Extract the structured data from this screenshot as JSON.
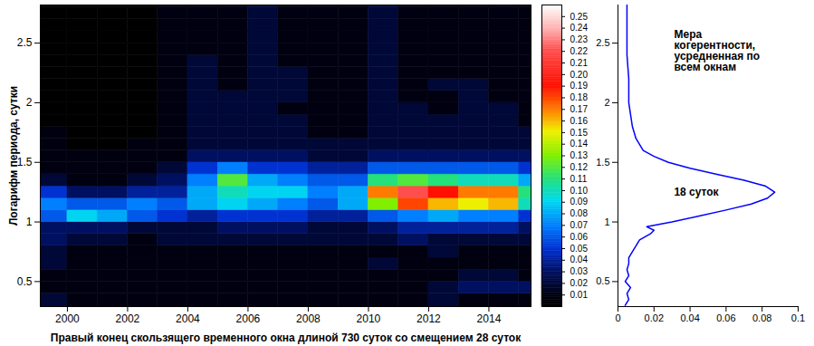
{
  "chart_data": [
    {
      "type": "heatmap",
      "x_label": "Правый конец скользящего временного окна длиной 730 суток со смещением 28 суток",
      "y_label": "Логарифм периода, сутки",
      "xlim": [
        1999.1,
        2015.4
      ],
      "ylim": [
        0.29,
        2.82
      ],
      "xticks": [
        2000,
        2002,
        2004,
        2006,
        2008,
        2010,
        2012,
        2014
      ],
      "yticks": [
        0.5,
        1,
        1.5,
        2,
        2.5
      ],
      "x_edges": [
        1999.1,
        2000,
        2001,
        2002,
        2003,
        2004,
        2005,
        2006,
        2007,
        2008,
        2009,
        2010,
        2011,
        2012,
        2013,
        2014,
        2015,
        2015.4
      ],
      "y_edges": [
        0.29,
        0.4,
        0.5,
        0.6,
        0.7,
        0.8,
        0.9,
        1.0,
        1.1,
        1.2,
        1.3,
        1.4,
        1.5,
        1.6,
        1.7,
        1.8,
        1.9,
        2.0,
        2.1,
        2.2,
        2.3,
        2.4,
        2.5,
        2.6,
        2.7,
        2.8,
        2.82
      ],
      "values": [
        [
          0.02,
          0.01,
          0.01,
          0.01,
          0.01,
          0.01,
          0.01,
          0.01,
          0.01,
          0.01,
          0.01,
          0.01,
          0.01,
          0.02,
          0.01,
          0.01,
          0.01
        ],
        [
          0.01,
          0.01,
          0.01,
          0.01,
          0.01,
          0.01,
          0.01,
          0.01,
          0.01,
          0.01,
          0.01,
          0.01,
          0.01,
          0.02,
          0.03,
          0.03,
          0.03
        ],
        [
          0.01,
          0.01,
          0.01,
          0.01,
          0.01,
          0.01,
          0.01,
          0.01,
          0.01,
          0.01,
          0.01,
          0.01,
          0.01,
          0.01,
          0.02,
          0.02,
          0.01
        ],
        [
          0.02,
          0.01,
          0.01,
          0.01,
          0.01,
          0.01,
          0.01,
          0.01,
          0.01,
          0.01,
          0.01,
          0.02,
          0.01,
          0.01,
          0.01,
          0.01,
          0.01
        ],
        [
          0.02,
          0.01,
          0.01,
          0.01,
          0.01,
          0.01,
          0.01,
          0.01,
          0.01,
          0.01,
          0.01,
          0.01,
          0.01,
          0.02,
          0.01,
          0.01,
          0.01
        ],
        [
          0.03,
          0.02,
          0.02,
          0.01,
          0.02,
          0.02,
          0.02,
          0.02,
          0.02,
          0.02,
          0.02,
          0.02,
          0.03,
          0.02,
          0.02,
          0.02,
          0.02
        ],
        [
          0.03,
          0.03,
          0.03,
          0.02,
          0.02,
          0.02,
          0.03,
          0.03,
          0.03,
          0.02,
          0.02,
          0.03,
          0.04,
          0.04,
          0.04,
          0.04,
          0.03
        ],
        [
          0.06,
          0.09,
          0.08,
          0.06,
          0.05,
          0.04,
          0.05,
          0.05,
          0.05,
          0.04,
          0.04,
          0.06,
          0.07,
          0.08,
          0.07,
          0.07,
          0.05
        ],
        [
          0.07,
          0.06,
          0.06,
          0.07,
          0.06,
          0.08,
          0.09,
          0.08,
          0.07,
          0.06,
          0.08,
          0.13,
          0.18,
          0.16,
          0.15,
          0.16,
          0.1
        ],
        [
          0.05,
          0.03,
          0.03,
          0.04,
          0.04,
          0.08,
          0.1,
          0.09,
          0.09,
          0.07,
          0.08,
          0.17,
          0.22,
          0.19,
          0.17,
          0.17,
          0.11
        ],
        [
          0.02,
          0.01,
          0.01,
          0.02,
          0.03,
          0.07,
          0.12,
          0.08,
          0.07,
          0.06,
          0.06,
          0.11,
          0.12,
          0.11,
          0.1,
          0.1,
          0.08
        ],
        [
          0.01,
          0.01,
          0.01,
          0.01,
          0.02,
          0.05,
          0.07,
          0.05,
          0.05,
          0.04,
          0.04,
          0.06,
          0.06,
          0.06,
          0.06,
          0.06,
          0.05
        ],
        [
          0.01,
          0.01,
          0.01,
          0.01,
          0.01,
          0.03,
          0.03,
          0.03,
          0.03,
          0.02,
          0.02,
          0.03,
          0.03,
          0.03,
          0.03,
          0.03,
          0.03
        ],
        [
          0.01,
          0,
          0,
          0.01,
          0.01,
          0.02,
          0.02,
          0.02,
          0.02,
          0.02,
          0.02,
          0.02,
          0.02,
          0.02,
          0.02,
          0.02,
          0.02
        ],
        [
          0.01,
          0,
          0,
          0,
          0.01,
          0.02,
          0.02,
          0.02,
          0.02,
          0.01,
          0.01,
          0.02,
          0.02,
          0.02,
          0.02,
          0.02,
          0.02
        ],
        [
          0,
          0,
          0,
          0,
          0.01,
          0.02,
          0.02,
          0.02,
          0.02,
          0.01,
          0.01,
          0.02,
          0.02,
          0.02,
          0.02,
          0.02,
          0.01
        ],
        [
          0,
          0,
          0,
          0,
          0.01,
          0.02,
          0.02,
          0.02,
          0.01,
          0.01,
          0.01,
          0.02,
          0.02,
          0.01,
          0.02,
          0.02,
          0.01
        ],
        [
          0,
          0,
          0,
          0,
          0.01,
          0.02,
          0.02,
          0.02,
          0.02,
          0.01,
          0.01,
          0.02,
          0.01,
          0.01,
          0.02,
          0.01,
          0.01
        ],
        [
          0,
          0,
          0,
          0,
          0.01,
          0.02,
          0.01,
          0.02,
          0.02,
          0.01,
          0.01,
          0.02,
          0.01,
          0.02,
          0.02,
          0.01,
          0.01
        ],
        [
          0,
          0,
          0,
          0,
          0.01,
          0.02,
          0.01,
          0.02,
          0.02,
          0.01,
          0.01,
          0.02,
          0.01,
          0.01,
          0.01,
          0.01,
          0.01
        ],
        [
          0,
          0,
          0,
          0,
          0.01,
          0.02,
          0.01,
          0.02,
          0.01,
          0.01,
          0.01,
          0.02,
          0.01,
          0.01,
          0.01,
          0.01,
          0.01
        ],
        [
          0,
          0,
          0,
          0,
          0.01,
          0.01,
          0.01,
          0.02,
          0.01,
          0.01,
          0.01,
          0.02,
          0.01,
          0.01,
          0.01,
          0.01,
          0.01
        ],
        [
          0,
          0,
          0,
          0,
          0.01,
          0.01,
          0.01,
          0.02,
          0.01,
          0.01,
          0.01,
          0.02,
          0.01,
          0.01,
          0.01,
          0.01,
          0.01
        ],
        [
          0,
          0,
          0,
          0,
          0.01,
          0.01,
          0.01,
          0.02,
          0.01,
          0.01,
          0.01,
          0.02,
          0.01,
          0.01,
          0.01,
          0.01,
          0.01
        ],
        [
          0,
          0,
          0,
          0,
          0.01,
          0.01,
          0.01,
          0.02,
          0.01,
          0.01,
          0.01,
          0.02,
          0.01,
          0.01,
          0.01,
          0.01,
          0.01
        ],
        [
          0,
          0,
          0,
          0,
          0.01,
          0.01,
          0.01,
          0.02,
          0.01,
          0.01,
          0.01,
          0.02,
          0.01,
          0.01,
          0.01,
          0.01,
          0.01
        ]
      ],
      "colorbar": {
        "range": [
          0,
          0.26
        ],
        "ticks": [
          0.01,
          0.02,
          0.03,
          0.04,
          0.05,
          0.06,
          0.07,
          0.08,
          0.09,
          {
            "value": 0.1,
            "label": "0.10"
          },
          0.11,
          0.12,
          0.13,
          0.14,
          0.15,
          0.16,
          0.17,
          0.18,
          0.19,
          {
            "value": 0.2,
            "label": "0.20"
          },
          0.21,
          0.22,
          0.23,
          0.24,
          0.25
        ]
      }
    },
    {
      "type": "line",
      "title": "Мера когерентности, усредненная по всем окнам",
      "annotation": "18 суток",
      "orientation": "horizontal",
      "color": "#0000ff",
      "xlim": [
        0,
        0.1
      ],
      "xticks": [
        0,
        0.02,
        0.04,
        0.06,
        0.08,
        0.1
      ],
      "ylim": [
        0.29,
        2.82
      ],
      "yticks": [
        0.5,
        1,
        1.5,
        2,
        2.5
      ],
      "y": [
        0.3,
        0.35,
        0.4,
        0.45,
        0.5,
        0.55,
        0.6,
        0.65,
        0.7,
        0.75,
        0.8,
        0.85,
        0.9,
        0.93,
        0.96,
        1.0,
        1.05,
        1.1,
        1.15,
        1.2,
        1.25,
        1.3,
        1.35,
        1.4,
        1.45,
        1.5,
        1.55,
        1.6,
        1.7,
        1.8,
        1.9,
        2.0,
        2.2,
        2.4,
        2.6,
        2.82
      ],
      "values": [
        0.004,
        0.006,
        0.005,
        0.007,
        0.004,
        0.006,
        0.005,
        0.006,
        0.006,
        0.008,
        0.01,
        0.012,
        0.018,
        0.02,
        0.016,
        0.03,
        0.045,
        0.06,
        0.074,
        0.083,
        0.087,
        0.082,
        0.07,
        0.055,
        0.04,
        0.028,
        0.02,
        0.014,
        0.01,
        0.008,
        0.007,
        0.006,
        0.006,
        0.005,
        0.005,
        0.005
      ]
    }
  ]
}
